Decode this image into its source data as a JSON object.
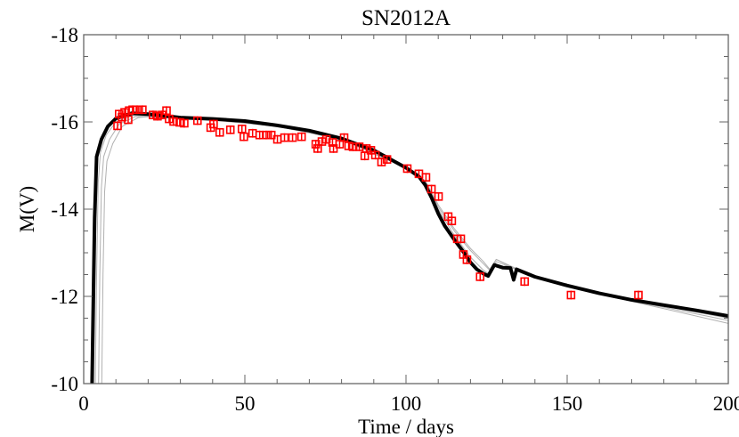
{
  "chart_data": {
    "type": "scatter",
    "title": "SN2012A",
    "xlabel": "Time / days",
    "ylabel": "M(V)",
    "xlim": [
      0,
      200
    ],
    "ylim": [
      -10,
      -18
    ],
    "y_inverted": true,
    "grid": false,
    "x_ticks": [
      0,
      50,
      100,
      150,
      200
    ],
    "x_tick_labels": [
      "0",
      "50",
      "100",
      "150",
      "200"
    ],
    "y_ticks": [
      -18,
      -16,
      -14,
      -12,
      -10
    ],
    "y_tick_labels": [
      "-18",
      "-16",
      "-14",
      "-12",
      "-10"
    ],
    "colors": {
      "observed": "#ff0000",
      "best_model": "#000000",
      "other_models": "#b0b0b0",
      "axes": "#666666"
    },
    "observations": {
      "marker": "open-square-with-errorbar",
      "yerr": 0.1,
      "points": [
        [
          10.5,
          -15.91
        ],
        [
          11.0,
          -16.18
        ],
        [
          11.9,
          -16.11
        ],
        [
          12.7,
          -16.22
        ],
        [
          13.8,
          -16.05
        ],
        [
          14.1,
          -16.26
        ],
        [
          15.2,
          -16.28
        ],
        [
          16.6,
          -16.28
        ],
        [
          18.2,
          -16.28
        ],
        [
          21.5,
          -16.16
        ],
        [
          22.9,
          -16.13
        ],
        [
          24.3,
          -16.16
        ],
        [
          25.7,
          -16.26
        ],
        [
          26.5,
          -16.07
        ],
        [
          27.9,
          -16.01
        ],
        [
          29.8,
          -15.99
        ],
        [
          31.2,
          -15.97
        ],
        [
          35.3,
          -16.03
        ],
        [
          39.4,
          -15.87
        ],
        [
          40.3,
          -15.95
        ],
        [
          42.2,
          -15.76
        ],
        [
          45.5,
          -15.82
        ],
        [
          49.1,
          -15.84
        ],
        [
          49.7,
          -15.66
        ],
        [
          52.4,
          -15.74
        ],
        [
          54.6,
          -15.7
        ],
        [
          56.6,
          -15.7
        ],
        [
          58.2,
          -15.7
        ],
        [
          60.1,
          -15.6
        ],
        [
          62.3,
          -15.64
        ],
        [
          64.8,
          -15.64
        ],
        [
          67.6,
          -15.66
        ],
        [
          72.0,
          -15.49
        ],
        [
          72.6,
          -15.39
        ],
        [
          73.9,
          -15.55
        ],
        [
          75.3,
          -15.6
        ],
        [
          77.2,
          -15.53
        ],
        [
          77.5,
          -15.39
        ],
        [
          79.4,
          -15.49
        ],
        [
          80.8,
          -15.64
        ],
        [
          82.2,
          -15.45
        ],
        [
          83.6,
          -15.43
        ],
        [
          85.5,
          -15.43
        ],
        [
          87.2,
          -15.22
        ],
        [
          87.7,
          -15.39
        ],
        [
          89.1,
          -15.35
        ],
        [
          90.5,
          -15.24
        ],
        [
          92.4,
          -15.08
        ],
        [
          94.1,
          -15.14
        ],
        [
          100.4,
          -14.93
        ],
        [
          104.0,
          -14.81
        ],
        [
          106.2,
          -14.73
        ],
        [
          107.9,
          -14.46
        ],
        [
          110.1,
          -14.29
        ],
        [
          113.1,
          -13.83
        ],
        [
          114.2,
          -13.73
        ],
        [
          115.9,
          -13.32
        ],
        [
          117.0,
          -13.32
        ],
        [
          117.8,
          -12.96
        ],
        [
          118.9,
          -12.84
        ],
        [
          123.0,
          -12.45
        ],
        [
          136.8,
          -12.34
        ],
        [
          151.2,
          -12.03
        ],
        [
          172.1,
          -12.03
        ]
      ]
    },
    "series": [
      {
        "role": "best_model",
        "points": [
          [
            2.6,
            -10
          ],
          [
            3.0,
            -12
          ],
          [
            3.4,
            -13.8
          ],
          [
            4.0,
            -15.2
          ],
          [
            5.5,
            -15.6
          ],
          [
            7.5,
            -15.9
          ],
          [
            10,
            -16.08
          ],
          [
            15,
            -16.2
          ],
          [
            20,
            -16.18
          ],
          [
            30,
            -16.1
          ],
          [
            40,
            -16.07
          ],
          [
            50,
            -16.02
          ],
          [
            60,
            -15.92
          ],
          [
            70,
            -15.8
          ],
          [
            80,
            -15.62
          ],
          [
            90,
            -15.35
          ],
          [
            95,
            -15.15
          ],
          [
            100,
            -14.95
          ],
          [
            104,
            -14.75
          ],
          [
            106,
            -14.55
          ],
          [
            108,
            -14.25
          ],
          [
            110,
            -13.9
          ],
          [
            112,
            -13.62
          ],
          [
            115,
            -13.3
          ],
          [
            118,
            -13.0
          ],
          [
            120,
            -12.78
          ],
          [
            122,
            -12.62
          ],
          [
            124,
            -12.52
          ],
          [
            125.5,
            -12.47
          ],
          [
            127.4,
            -12.72
          ],
          [
            130,
            -12.66
          ],
          [
            132.4,
            -12.65
          ],
          [
            133.4,
            -12.38
          ],
          [
            134.3,
            -12.62
          ],
          [
            140,
            -12.45
          ],
          [
            150,
            -12.25
          ],
          [
            160,
            -12.07
          ],
          [
            170,
            -11.92
          ],
          [
            180,
            -11.8
          ],
          [
            190,
            -11.68
          ],
          [
            200,
            -11.55
          ]
        ]
      },
      {
        "role": "other_model",
        "points": [
          [
            3.6,
            -10
          ],
          [
            4.0,
            -12.5
          ],
          [
            4.5,
            -14.6
          ],
          [
            5.2,
            -15.3
          ],
          [
            7,
            -15.7
          ],
          [
            10,
            -16.0
          ],
          [
            15,
            -16.15
          ],
          [
            20,
            -16.15
          ],
          [
            40,
            -16.05
          ],
          [
            60,
            -15.9
          ],
          [
            80,
            -15.6
          ],
          [
            100,
            -14.95
          ],
          [
            106,
            -14.6
          ],
          [
            110,
            -14.0
          ],
          [
            115,
            -13.4
          ],
          [
            120,
            -12.9
          ],
          [
            124,
            -12.6
          ],
          [
            126,
            -12.5
          ],
          [
            128,
            -12.8
          ],
          [
            133,
            -12.65
          ],
          [
            140,
            -12.45
          ],
          [
            160,
            -12.05
          ],
          [
            180,
            -11.75
          ],
          [
            200,
            -11.45
          ]
        ]
      },
      {
        "role": "other_model",
        "points": [
          [
            4.6,
            -10
          ],
          [
            5.0,
            -12.5
          ],
          [
            5.5,
            -14.5
          ],
          [
            6.2,
            -15.2
          ],
          [
            8,
            -15.6
          ],
          [
            11,
            -15.95
          ],
          [
            16,
            -16.12
          ],
          [
            20,
            -16.13
          ],
          [
            40,
            -16.05
          ],
          [
            60,
            -15.9
          ],
          [
            80,
            -15.6
          ],
          [
            100,
            -14.95
          ],
          [
            106,
            -14.62
          ],
          [
            110,
            -14.05
          ],
          [
            115,
            -13.5
          ],
          [
            120,
            -13.05
          ],
          [
            124,
            -12.75
          ],
          [
            126,
            -12.6
          ],
          [
            128,
            -12.85
          ],
          [
            133,
            -12.68
          ],
          [
            140,
            -12.45
          ],
          [
            160,
            -12.05
          ],
          [
            180,
            -11.72
          ],
          [
            200,
            -11.38
          ]
        ]
      },
      {
        "role": "other_model",
        "points": [
          [
            5.6,
            -10
          ],
          [
            6.0,
            -12.5
          ],
          [
            6.5,
            -14.4
          ],
          [
            7.2,
            -15.1
          ],
          [
            9,
            -15.5
          ],
          [
            12,
            -15.9
          ],
          [
            17,
            -16.1
          ],
          [
            20,
            -16.12
          ],
          [
            40,
            -16.04
          ],
          [
            60,
            -15.9
          ],
          [
            80,
            -15.6
          ],
          [
            100,
            -14.95
          ],
          [
            106,
            -14.65
          ],
          [
            110,
            -14.1
          ],
          [
            115,
            -13.55
          ],
          [
            120,
            -13.1
          ],
          [
            124,
            -12.8
          ],
          [
            126,
            -12.62
          ],
          [
            128,
            -12.85
          ],
          [
            133,
            -12.66
          ],
          [
            140,
            -12.46
          ],
          [
            160,
            -12.08
          ],
          [
            180,
            -11.78
          ],
          [
            200,
            -11.5
          ]
        ]
      }
    ]
  }
}
